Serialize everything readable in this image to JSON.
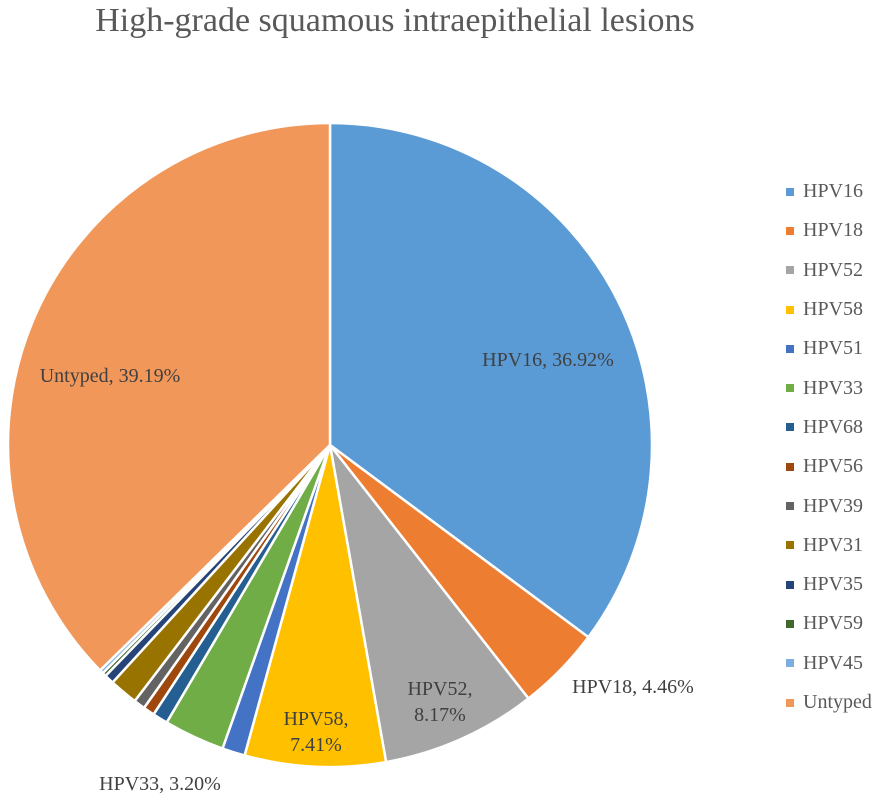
{
  "chart_data": {
    "type": "pie",
    "title": "High-grade squamous intraepithelial lesions",
    "legend_position": "right",
    "slices": [
      {
        "name": "HPV16",
        "value": 36.92,
        "color": "#5B9BD5",
        "label_lines": [
          "HPV16, 36.92%"
        ]
      },
      {
        "name": "HPV18",
        "value": 4.46,
        "color": "#ED7D31",
        "label_lines": [
          "HPV18, 4.46%"
        ]
      },
      {
        "name": "HPV52",
        "value": 8.17,
        "color": "#A5A5A5",
        "label_lines": [
          "HPV52,",
          "8.17%"
        ]
      },
      {
        "name": "HPV58",
        "value": 7.41,
        "color": "#FFC000",
        "label_lines": [
          "HPV58,",
          "7.41%"
        ]
      },
      {
        "name": "HPV51",
        "value": 1.2,
        "color": "#4472C4",
        "label_lines": []
      },
      {
        "name": "HPV33",
        "value": 3.2,
        "color": "#70AD47",
        "label_lines": [
          "HPV33, 3.20%"
        ]
      },
      {
        "name": "HPV68",
        "value": 0.8,
        "color": "#255E91",
        "label_lines": []
      },
      {
        "name": "HPV56",
        "value": 0.6,
        "color": "#9E480E",
        "label_lines": []
      },
      {
        "name": "HPV39",
        "value": 0.6,
        "color": "#636363",
        "label_lines": []
      },
      {
        "name": "HPV31",
        "value": 1.5,
        "color": "#997300",
        "label_lines": []
      },
      {
        "name": "HPV35",
        "value": 0.5,
        "color": "#264478",
        "label_lines": []
      },
      {
        "name": "HPV59",
        "value": 0.2,
        "color": "#43682B",
        "label_lines": []
      },
      {
        "name": "HPV45",
        "value": 0.2,
        "color": "#7CAFDD",
        "label_lines": []
      },
      {
        "name": "Untyped",
        "value": 39.19,
        "color": "#F1975A",
        "label_lines": [
          "Untyped, 39.19%"
        ]
      }
    ]
  }
}
